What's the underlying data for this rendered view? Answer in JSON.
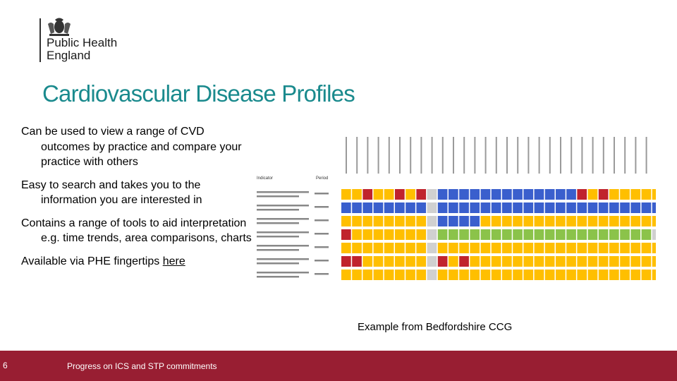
{
  "logo": {
    "org_name": "Public Health\nEngland",
    "icon": "royal-crest-icon"
  },
  "slide": {
    "title": "Cardiovascular Disease Profiles",
    "bullets": [
      "Can be used to view a range of CVD outcomes by practice and compare your practice with others",
      "Easy to search and takes you to the information you are interested in",
      "Contains a range of tools to aid interpretation e.g. time trends, area comparisons, charts"
    ],
    "last_bullet_text": "Available via PHE fingertips ",
    "last_bullet_link": "here",
    "caption": "Example from Bedfordshire CCG"
  },
  "table_image": {
    "indicator_header": "Indicator",
    "period_header": "Period",
    "palette": {
      "red": "#c0232d",
      "amber": "#ffbf00",
      "green": "#8bc34a",
      "blue": "#3a5fcd",
      "grey": "#d0d0d0"
    },
    "rows": [
      "yyryyryr.bbbbbbbbbbbbbryryyyyy",
      "bbbbbbbb.bbbbbbbbbbbbbbbbbbbbb",
      "yyyyyyyy.bbbbyyyyyyyyyyyyyyyyy",
      "ryyyyyyy.gggggggggggggggggggg",
      "yyyyyyyy.yyyyyyyyyyyyyyyyyyyyy",
      "rryyyyyy.ryryyyyyyyyyyyyyyyyyy",
      "yyyyyyyy.yyyyyyyyyyyyyyyyyyyyy"
    ]
  },
  "footer": {
    "page_number": "6",
    "text": "Progress on ICS and STP commitments",
    "color": "#981e32"
  },
  "accent_color": "#1a8a8d"
}
